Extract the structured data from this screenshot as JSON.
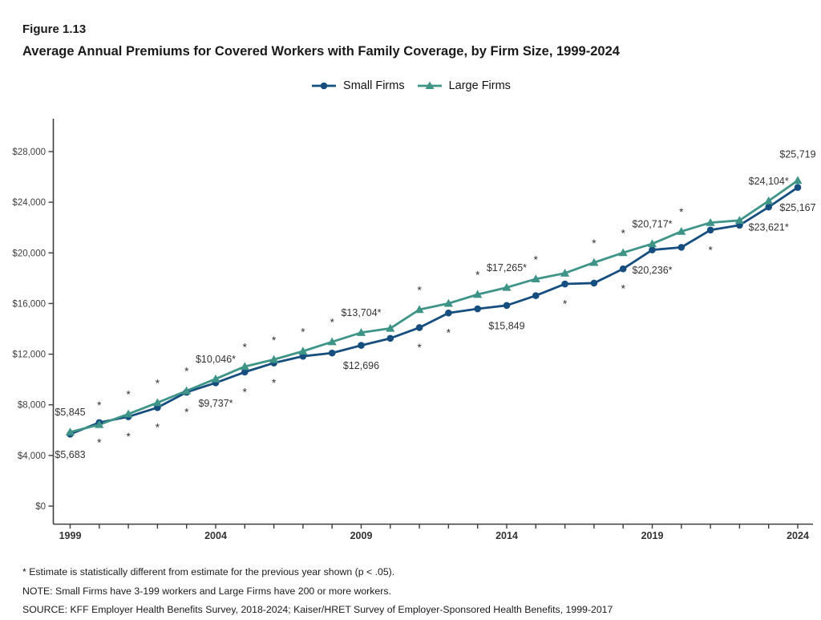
{
  "figure": {
    "label": "Figure 1.13",
    "title": "Average Annual Premiums for Covered Workers with Family Coverage, by Firm Size, 1999-2024"
  },
  "legend": {
    "items": [
      {
        "label": "Small Firms",
        "marker": "circle",
        "color": "#164e7f"
      },
      {
        "label": "Large Firms",
        "marker": "triangle",
        "color": "#3f9488"
      }
    ]
  },
  "footnotes": {
    "asterisk": "* Estimate is statistically different from estimate for the previous year shown (p < .05).",
    "note": "NOTE: Small Firms have 3-199 workers and Large Firms have 200 or more workers.",
    "source": "SOURCE: KFF Employer Health Benefits Survey, 2018-2024; Kaiser/HRET Survey of Employer-Sponsored Health Benefits, 1999-2017"
  },
  "chart_data": {
    "type": "line",
    "x_years": [
      1999,
      2000,
      2001,
      2002,
      2003,
      2004,
      2005,
      2006,
      2007,
      2008,
      2009,
      2010,
      2011,
      2012,
      2013,
      2014,
      2015,
      2016,
      2017,
      2018,
      2019,
      2020,
      2021,
      2022,
      2023,
      2024
    ],
    "ylim": [
      0,
      28000
    ],
    "yticks": [
      0,
      4000,
      8000,
      12000,
      16000,
      20000,
      24000,
      28000
    ],
    "ytick_labels": [
      "$0",
      "$4,000",
      "$8,000",
      "$12,000",
      "$16,000",
      "$20,000",
      "$24,000",
      "$28,000"
    ],
    "xtick_labeled_years": [
      1999,
      2004,
      2009,
      2014,
      2019,
      2024
    ],
    "grid": false,
    "legend_position": "top-center",
    "series": [
      {
        "name": "Small Firms",
        "color": "#164e7f",
        "marker": "circle",
        "label_side": "below",
        "values": [
          5683,
          6599,
          7061,
          7781,
          8994,
          9737,
          10587,
          11306,
          11835,
          12091,
          12696,
          13250,
          14098,
          15253,
          15581,
          15849,
          16625,
          17546,
          17615,
          18739,
          20236,
          20438,
          21804,
          22186,
          23621,
          25167
        ],
        "asterisk_years": [
          2000,
          2001,
          2002,
          2003,
          2005,
          2006,
          2011,
          2012,
          2016,
          2018,
          2021
        ],
        "point_labels": [
          {
            "year": 1999,
            "text": "$5,683"
          },
          {
            "year": 2004,
            "text": "$9,737*"
          },
          {
            "year": 2009,
            "text": "$12,696"
          },
          {
            "year": 2014,
            "text": "$15,849"
          },
          {
            "year": 2019,
            "text": "$20,236*"
          },
          {
            "year": 2023,
            "text": "$23,621*"
          },
          {
            "year": 2024,
            "text": "$25,167"
          }
        ]
      },
      {
        "name": "Large Firms",
        "color": "#3f9488",
        "marker": "triangle",
        "label_side": "above",
        "values": [
          5845,
          6438,
          7275,
          8167,
          9107,
          10046,
          11025,
          11575,
          12233,
          12973,
          13704,
          14038,
          15520,
          16008,
          16715,
          17265,
          17938,
          18395,
          19235,
          20013,
          20717,
          21691,
          22389,
          22564,
          24104,
          25719
        ],
        "asterisk_years": [
          2000,
          2001,
          2002,
          2003,
          2005,
          2006,
          2007,
          2008,
          2011,
          2013,
          2015,
          2017,
          2018,
          2020
        ],
        "point_labels": [
          {
            "year": 1999,
            "text": "$5,845"
          },
          {
            "year": 2004,
            "text": "$10,046*"
          },
          {
            "year": 2009,
            "text": "$13,704*"
          },
          {
            "year": 2014,
            "text": "$17,265*"
          },
          {
            "year": 2019,
            "text": "$20,717*"
          },
          {
            "year": 2023,
            "text": "$24,104*"
          },
          {
            "year": 2024,
            "text": "$25,719",
            "dy": -8
          }
        ]
      }
    ]
  }
}
